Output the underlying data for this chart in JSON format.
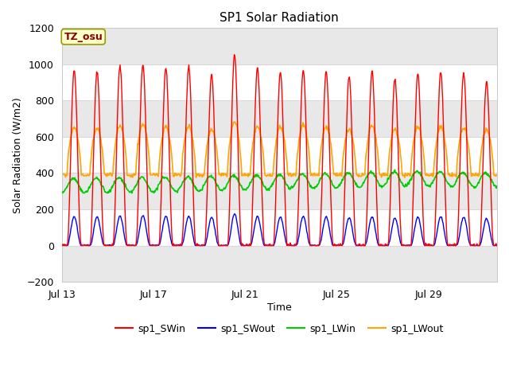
{
  "title": "SP1 Solar Radiation",
  "xlabel": "Time",
  "ylabel": "Solar Radiation (W/m2)",
  "ylim": [
    -200,
    1200
  ],
  "xlim_days": [
    0,
    19
  ],
  "x_ticks_days": [
    0,
    4,
    8,
    12,
    16
  ],
  "x_tick_labels": [
    "Jul 13",
    "Jul 17",
    "Jul 21",
    "Jul 25",
    "Jul 29"
  ],
  "colors": {
    "SWin": "#ff0000",
    "SWout": "#0000ff",
    "LWin": "#00cc00",
    "LWout": "#ffa500"
  },
  "legend_labels": [
    "sp1_SWin",
    "sp1_SWout",
    "sp1_LWin",
    "sp1_LWout"
  ],
  "tz_label": "TZ_osu",
  "plot_bg_color": "#f0f0f0",
  "title_fontsize": 11,
  "axis_fontsize": 9,
  "tick_fontsize": 9,
  "legend_fontsize": 9,
  "grid_color": "#d8d8d8",
  "band_color": "#e8e8e8"
}
